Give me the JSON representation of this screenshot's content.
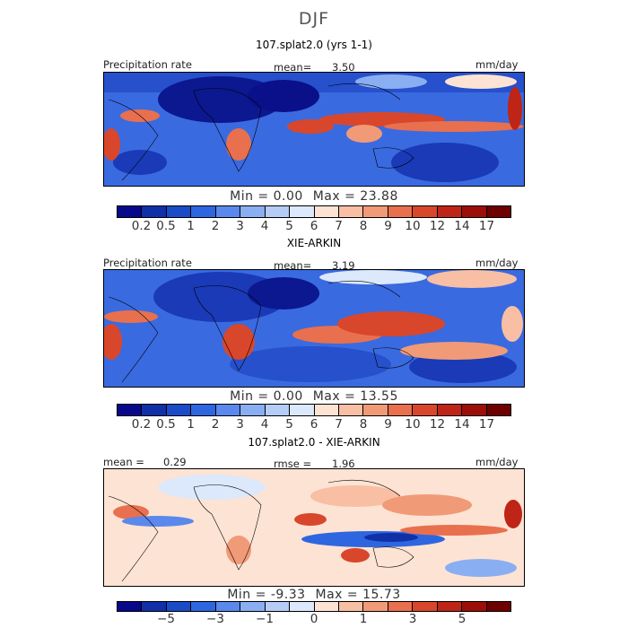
{
  "page": {
    "season": "DJF",
    "panels": [
      {
        "id": "model",
        "title": "107.splat2.0 (yrs 1-1)",
        "left_label": "Precipitation rate",
        "center_label": "mean=",
        "center_value": "3.50",
        "right_label": "mm/day",
        "min_label": "Min =",
        "min_value": "0.00",
        "max_label": "Max =",
        "max_value": "23.88"
      },
      {
        "id": "obs",
        "title": "XIE-ARKIN",
        "left_label": "Precipitation rate",
        "center_label": "mean=",
        "center_value": "3.19",
        "right_label": "mm/day",
        "min_label": "Min =",
        "min_value": "0.00",
        "max_label": "Max =",
        "max_value": "13.55"
      },
      {
        "id": "diff",
        "title": "107.splat2.0 - XIE-ARKIN",
        "left_label": "mean =",
        "left_value": "0.29",
        "center_label": "rmse =",
        "center_value": "1.96",
        "right_label": "mm/day",
        "min_label": "Min =",
        "min_value": "-9.33",
        "max_label": "Max =",
        "max_value": "15.73"
      }
    ]
  },
  "chart_data": [
    {
      "type": "heatmap",
      "title": "107.splat2.0 (yrs 1-1)",
      "quantity": "Precipitation rate",
      "units": "mm/day",
      "mean": 3.5,
      "min": 0.0,
      "max": 23.88,
      "colorbar": {
        "levels": [
          0.2,
          0.5,
          1,
          2,
          3,
          4,
          5,
          6,
          7,
          8,
          9,
          10,
          12,
          14,
          17
        ],
        "labels": [
          "0.2",
          "0.5",
          "1",
          "2",
          "3",
          "4",
          "5",
          "6",
          "7",
          "8",
          "9",
          "10",
          "12",
          "14",
          "17"
        ],
        "colors": [
          "#08088a",
          "#1030a8",
          "#1a4cc8",
          "#2e66e0",
          "#5a88ec",
          "#8aaef2",
          "#b4ccf6",
          "#dce8fb",
          "#fde3d3",
          "#f8bfa4",
          "#f19a78",
          "#e8704e",
          "#d8472b",
          "#be2516",
          "#9c0e08",
          "#6e0000"
        ]
      }
    },
    {
      "type": "heatmap",
      "title": "XIE-ARKIN",
      "quantity": "Precipitation rate",
      "units": "mm/day",
      "mean": 3.19,
      "min": 0.0,
      "max": 13.55,
      "colorbar": {
        "levels": [
          0.2,
          0.5,
          1,
          2,
          3,
          4,
          5,
          6,
          7,
          8,
          9,
          10,
          12,
          14,
          17
        ],
        "labels": [
          "0.2",
          "0.5",
          "1",
          "2",
          "3",
          "4",
          "5",
          "6",
          "7",
          "8",
          "9",
          "10",
          "12",
          "14",
          "17"
        ],
        "colors": [
          "#08088a",
          "#1030a8",
          "#1a4cc8",
          "#2e66e0",
          "#5a88ec",
          "#8aaef2",
          "#b4ccf6",
          "#dce8fb",
          "#fde3d3",
          "#f8bfa4",
          "#f19a78",
          "#e8704e",
          "#d8472b",
          "#be2516",
          "#9c0e08",
          "#6e0000"
        ]
      }
    },
    {
      "type": "heatmap",
      "title": "107.splat2.0 - XIE-ARKIN",
      "units": "mm/day",
      "mean": 0.29,
      "rmse": 1.96,
      "min": -9.33,
      "max": 15.73,
      "colorbar": {
        "levels": [
          -6,
          -5,
          -4,
          -3,
          -2,
          -1,
          -0.5,
          0,
          0.5,
          1,
          2,
          3,
          4,
          5,
          6
        ],
        "labels": [
          "−5",
          "−3",
          "−1",
          "0",
          "1",
          "3",
          "5"
        ],
        "label_levels": [
          -5,
          -3,
          -1,
          0,
          1,
          3,
          5
        ],
        "colors": [
          "#08088a",
          "#1030a8",
          "#1a4cc8",
          "#2e66e0",
          "#5a88ec",
          "#8aaef2",
          "#b4ccf6",
          "#dce8fb",
          "#fde3d3",
          "#f8bfa4",
          "#f19a78",
          "#e8704e",
          "#d8472b",
          "#be2516",
          "#9c0e08",
          "#6e0000"
        ]
      }
    }
  ]
}
